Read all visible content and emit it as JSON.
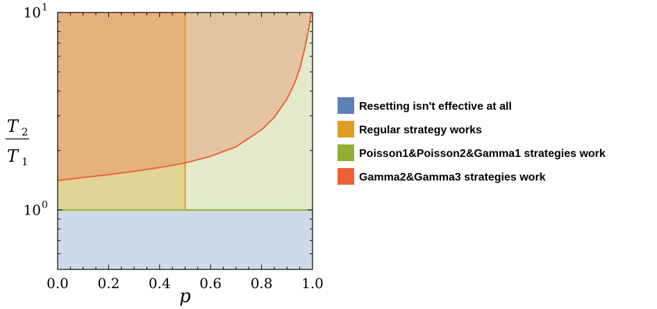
{
  "chart_data": {
    "type": "area",
    "title": "",
    "xlabel": "p",
    "ylabel": {
      "numerator": "T",
      "numerator_sub": "2",
      "denominator": "T",
      "denominator_sub": "1"
    },
    "xlim": [
      0.0,
      1.0
    ],
    "ylim": [
      0.5,
      10
    ],
    "y_scale": "log",
    "x_ticks": [
      "0.0",
      "0.2",
      "0.4",
      "0.6",
      "0.8",
      "1.0"
    ],
    "y_ticks": [
      {
        "value": 1,
        "base": "10",
        "exp": "0"
      },
      {
        "value": 10,
        "base": "10",
        "exp": "1"
      }
    ],
    "regions": [
      {
        "name": "Resetting isn't effective at all",
        "color": "#5e81b5",
        "region": "T2/T1 < 1 for all p"
      },
      {
        "name": "Regular strategy works",
        "color": "#e19c24",
        "region": "p < 0.5, T2/T1 > 1"
      },
      {
        "name": "Poisson1&Poisson2&Gamma1 strategies work",
        "color": "#8fb032",
        "region": "T2/T1 > 1 for all p"
      },
      {
        "name": "Gamma2&Gamma3 strategies work",
        "color": "#eb6235",
        "region": "T2/T1 above boundary curve"
      }
    ],
    "boundaries": {
      "regular_p": 0.5,
      "poisson_ratio": 1.0,
      "gamma_curve": {
        "x": [
          0.0,
          0.1,
          0.2,
          0.3,
          0.4,
          0.5,
          0.6,
          0.7,
          0.8,
          0.85,
          0.9,
          0.93,
          0.95,
          0.97,
          0.985,
          0.995
        ],
        "y": [
          1.41,
          1.46,
          1.51,
          1.57,
          1.64,
          1.73,
          1.87,
          2.09,
          2.55,
          2.95,
          3.65,
          4.4,
          5.2,
          6.6,
          8.3,
          10.0
        ]
      }
    },
    "legend": {
      "position": "right",
      "items": [
        {
          "label": "Resetting isn't effective at all",
          "color": "#5e81b5"
        },
        {
          "label": "Regular strategy works",
          "color": "#e19c24"
        },
        {
          "label": "Poisson1&Poisson2&Gamma1 strategies work",
          "color": "#8fb032"
        },
        {
          "label": "Gamma2&Gamma3 strategies work",
          "color": "#eb6235"
        }
      ]
    },
    "grid": false
  }
}
